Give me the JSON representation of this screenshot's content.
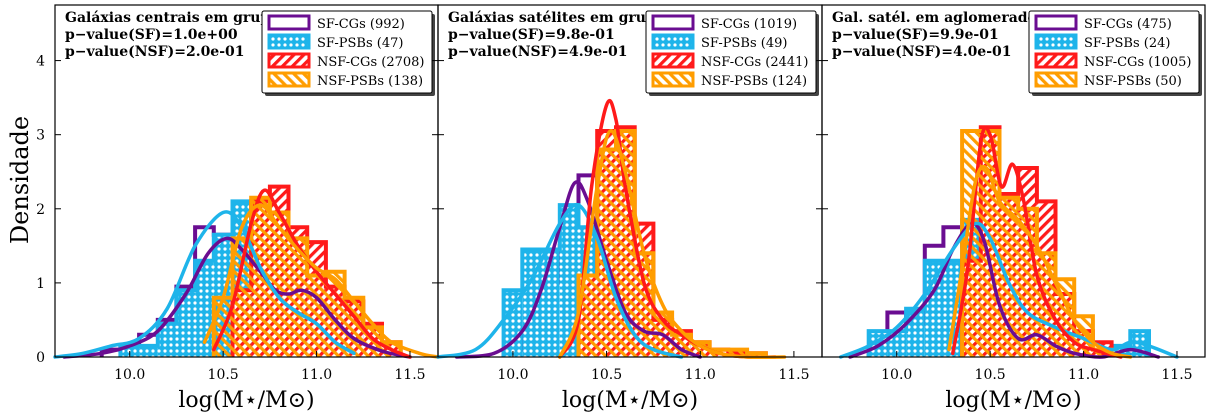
{
  "chart_data": [
    {
      "type": "histogram",
      "title": "Galáxias centrais em grupos",
      "annotations": [
        "p−value(SF)=1.0e+00",
        "p−value(NSF)=2.0e-01"
      ],
      "xlabel": "log(M⋆/M⊙)",
      "ylabel": "Densidade",
      "xlim": [
        9.6,
        11.65
      ],
      "ylim": [
        0,
        4.75
      ],
      "xticks": [
        10.0,
        10.5,
        11.0,
        11.5
      ],
      "xticklabels": [
        "10.0",
        "10.5",
        "11.0",
        "11.5"
      ],
      "yticks": [
        0,
        1,
        2,
        3,
        4
      ],
      "yticklabels": [
        "0",
        "1",
        "2",
        "3",
        "4"
      ],
      "legend_position": "top-right",
      "series": [
        {
          "name": "SF-CGs (992)",
          "color": "#6a0d91",
          "style": "step",
          "edges": [
            9.85,
            9.95,
            10.05,
            10.15,
            10.25,
            10.35,
            10.45,
            10.55,
            10.65,
            10.75,
            10.85,
            10.95,
            11.05,
            11.15,
            11.25,
            11.35,
            11.45
          ],
          "heights": [
            0.1,
            0.15,
            0.3,
            0.5,
            0.95,
            1.75,
            1.65,
            1.6,
            1.1,
            0.95,
            0.9,
            0.85,
            0.55,
            0.3,
            0.2,
            0.1
          ],
          "kde": {
            "x": [
              9.65,
              9.85,
              10.0,
              10.15,
              10.3,
              10.42,
              10.52,
              10.6,
              10.7,
              10.78,
              10.85,
              10.92,
              11.0,
              11.1,
              11.2,
              11.35,
              11.5
            ],
            "y": [
              0.0,
              0.05,
              0.15,
              0.35,
              0.85,
              1.4,
              1.6,
              1.45,
              1.15,
              0.9,
              0.85,
              0.9,
              0.8,
              0.5,
              0.25,
              0.08,
              0.0
            ]
          }
        },
        {
          "name": "SF-PSBs (47)",
          "color": "#1eb4ea",
          "style": "dotted-fill",
          "edges": [
            9.95,
            10.05,
            10.15,
            10.25,
            10.35,
            10.45,
            10.55,
            10.65,
            10.75,
            10.85,
            10.95,
            11.05,
            11.15
          ],
          "heights": [
            0.15,
            0.15,
            0.45,
            0.9,
            1.3,
            1.65,
            2.1,
            1.2,
            0.85,
            0.65,
            0.55,
            0.35
          ],
          "kde": {
            "x": [
              9.6,
              9.75,
              9.9,
              10.05,
              10.2,
              10.35,
              10.5,
              10.6,
              10.7,
              10.8,
              10.9,
              11.0,
              11.1,
              11.2
            ],
            "y": [
              0.0,
              0.05,
              0.15,
              0.25,
              0.65,
              1.5,
              1.95,
              1.75,
              1.2,
              0.8,
              0.6,
              0.45,
              0.2,
              0.05
            ]
          }
        },
        {
          "name": "NSF-CGs (2708)",
          "color": "#ff1a1a",
          "style": "hatch",
          "edges": [
            10.55,
            10.65,
            10.75,
            10.85,
            10.95,
            11.05,
            11.15,
            11.25,
            11.35,
            11.45
          ],
          "heights": [
            0.9,
            2.1,
            2.3,
            1.75,
            1.55,
            0.95,
            0.75,
            0.45,
            0.2
          ],
          "kde": {
            "x": [
              10.45,
              10.55,
              10.65,
              10.72,
              10.8,
              10.9,
              11.0,
              11.1,
              11.2,
              11.3,
              11.4,
              11.5
            ],
            "y": [
              0.1,
              0.7,
              1.8,
              2.25,
              1.95,
              1.5,
              1.15,
              0.85,
              0.55,
              0.25,
              0.1,
              0.0
            ]
          }
        },
        {
          "name": "NSF-PSBs (138)",
          "color": "#ff9d00",
          "style": "hatch",
          "edges": [
            10.45,
            10.55,
            10.65,
            10.75,
            10.85,
            10.95,
            11.05,
            11.15,
            11.25,
            11.35,
            11.45
          ],
          "heights": [
            0.8,
            1.6,
            2.15,
            1.95,
            1.6,
            1.1,
            1.15,
            0.8,
            0.4,
            0.2
          ],
          "kde": {
            "x": [
              10.4,
              10.5,
              10.6,
              10.7,
              10.8,
              10.9,
              11.0,
              11.1,
              11.2,
              11.3,
              11.4,
              11.55,
              11.65
            ],
            "y": [
              0.2,
              0.8,
              1.75,
              2.05,
              1.75,
              1.45,
              1.2,
              1.05,
              0.75,
              0.45,
              0.2,
              0.05,
              0.0
            ]
          }
        }
      ]
    },
    {
      "type": "histogram",
      "title": "Galáxias satélites em grupos",
      "annotations": [
        "p−value(SF)=9.8e-01",
        "p−value(NSF)=4.9e-01"
      ],
      "xlabel": "log(M⋆/M⊙)",
      "xlim": [
        9.6,
        11.65
      ],
      "ylim": [
        0,
        4.75
      ],
      "xticks": [
        10.0,
        10.5,
        11.0,
        11.5
      ],
      "xticklabels": [
        "10.0",
        "10.5",
        "11.0",
        "11.5"
      ],
      "legend_position": "top-right",
      "series": [
        {
          "name": "SF-CGs (1019)",
          "color": "#6a0d91",
          "style": "step",
          "edges": [
            9.95,
            10.05,
            10.15,
            10.25,
            10.35,
            10.45,
            10.55,
            10.65,
            10.75,
            10.85,
            10.95
          ],
          "heights": [
            0.1,
            0.3,
            1.0,
            1.5,
            2.45,
            2.3,
            1.0,
            0.45,
            0.3,
            0.15
          ],
          "kde": {
            "x": [
              9.7,
              9.9,
              10.05,
              10.15,
              10.25,
              10.33,
              10.4,
              10.5,
              10.6,
              10.7,
              10.8,
              10.9,
              11.0
            ],
            "y": [
              0.0,
              0.05,
              0.35,
              0.9,
              1.75,
              2.35,
              2.1,
              1.3,
              0.6,
              0.35,
              0.3,
              0.1,
              0.0
            ]
          }
        },
        {
          "name": "SF-PSBs (49)",
          "color": "#1eb4ea",
          "style": "dotted-fill",
          "edges": [
            9.95,
            10.05,
            10.15,
            10.25,
            10.35,
            10.45,
            10.55,
            10.65,
            10.75,
            10.85
          ],
          "heights": [
            0.9,
            1.45,
            1.45,
            2.05,
            1.75,
            0.9,
            0.3,
            0.15,
            0.1
          ],
          "kde": {
            "x": [
              9.6,
              9.8,
              9.95,
              10.1,
              10.25,
              10.35,
              10.45,
              10.55,
              10.65,
              10.75,
              10.9
            ],
            "y": [
              0.0,
              0.1,
              0.5,
              1.05,
              1.8,
              2.05,
              1.6,
              0.8,
              0.3,
              0.1,
              0.0
            ]
          }
        },
        {
          "name": "NSF-CGs (2441)",
          "color": "#ff1a1a",
          "style": "hatch",
          "edges": [
            10.35,
            10.45,
            10.55,
            10.65,
            10.75,
            10.85,
            10.95,
            11.05,
            11.15,
            11.25,
            11.35
          ],
          "heights": [
            1.1,
            3.05,
            3.1,
            1.8,
            0.5,
            0.35,
            0.2,
            0.1,
            0.05,
            0.05
          ],
          "kde": {
            "x": [
              10.25,
              10.35,
              10.42,
              10.5,
              10.55,
              10.6,
              10.7,
              10.8,
              10.9,
              11.0,
              11.1,
              11.25,
              11.4
            ],
            "y": [
              0.0,
              0.5,
              2.3,
              3.4,
              3.2,
              2.3,
              1.0,
              0.5,
              0.3,
              0.15,
              0.05,
              0.0,
              0.0
            ]
          }
        },
        {
          "name": "NSF-PSBs (124)",
          "color": "#ff9d00",
          "style": "hatch",
          "edges": [
            10.35,
            10.45,
            10.55,
            10.65,
            10.75,
            10.85,
            10.95,
            11.05,
            11.15,
            11.25,
            11.35
          ],
          "heights": [
            1.1,
            2.8,
            3.05,
            1.4,
            0.6,
            0.3,
            0.2,
            0.1,
            0.1,
            0.05
          ],
          "kde": {
            "x": [
              10.25,
              10.35,
              10.45,
              10.52,
              10.6,
              10.7,
              10.8,
              10.9,
              11.0,
              11.1,
              11.25,
              11.45
            ],
            "y": [
              0.0,
              0.6,
              2.3,
              3.05,
              2.5,
              1.4,
              0.7,
              0.35,
              0.15,
              0.05,
              0.0,
              0.0
            ]
          }
        }
      ]
    },
    {
      "type": "histogram",
      "title": "Gal. satél. em aglomerados",
      "annotations": [
        "p−value(SF)=9.9e-01",
        "p−value(NSF)=4.0e-01"
      ],
      "xlabel": "log(M⋆/M⊙)",
      "xlim": [
        9.6,
        11.65
      ],
      "ylim": [
        0,
        4.75
      ],
      "xticks": [
        10.0,
        10.5,
        11.0,
        11.5
      ],
      "xticklabels": [
        "10.0",
        "10.5",
        "11.0",
        "11.5"
      ],
      "legend_position": "top-right",
      "series": [
        {
          "name": "SF-CGs (475)",
          "color": "#6a0d91",
          "style": "step",
          "edges": [
            9.85,
            9.95,
            10.05,
            10.15,
            10.25,
            10.35,
            10.45,
            10.55,
            10.65,
            10.75,
            10.85,
            10.95,
            11.05,
            11.15,
            11.25
          ],
          "heights": [
            0.1,
            0.6,
            0.45,
            1.5,
            1.75,
            1.5,
            1.5,
            0.5,
            0.3,
            0.25,
            0.25,
            0.15,
            0.1,
            0.1
          ],
          "kde": {
            "x": [
              9.75,
              9.9,
              10.05,
              10.2,
              10.3,
              10.4,
              10.47,
              10.55,
              10.65,
              10.75,
              10.85,
              10.95,
              11.1,
              11.25,
              11.4
            ],
            "y": [
              0.0,
              0.15,
              0.45,
              0.9,
              1.45,
              1.8,
              1.55,
              0.7,
              0.25,
              0.3,
              0.15,
              0.05,
              0.0,
              0.1,
              0.0
            ]
          }
        },
        {
          "name": "SF-PSBs (24)",
          "color": "#1eb4ea",
          "style": "dotted-fill",
          "edges": [
            9.85,
            9.95,
            10.05,
            10.15,
            10.25,
            10.35,
            10.45,
            10.55,
            10.65,
            10.75,
            10.85,
            10.95,
            11.05,
            11.15,
            11.25,
            11.35
          ],
          "heights": [
            0.35,
            0.35,
            0.65,
            1.3,
            1.3,
            1.85,
            1.55,
            1.0,
            0.35,
            0.35,
            0.2,
            0.15,
            0.1,
            0.15,
            0.35
          ],
          "kde": {
            "x": [
              9.7,
              9.85,
              10.0,
              10.15,
              10.3,
              10.42,
              10.5,
              10.6,
              10.7,
              10.85,
              11.0,
              11.15,
              11.25,
              11.35,
              11.5
            ],
            "y": [
              0.0,
              0.15,
              0.4,
              0.85,
              1.45,
              1.8,
              1.6,
              1.0,
              0.6,
              0.4,
              0.25,
              0.1,
              0.2,
              0.15,
              0.0
            ]
          }
        },
        {
          "name": "NSF-CGs (1005)",
          "color": "#ff1a1a",
          "style": "hatch",
          "edges": [
            10.35,
            10.45,
            10.55,
            10.65,
            10.75,
            10.85,
            10.95,
            11.05,
            11.15
          ],
          "heights": [
            1.3,
            3.1,
            2.2,
            2.55,
            2.1,
            0.85,
            0.35,
            0.2
          ],
          "kde": {
            "x": [
              10.3,
              10.38,
              10.45,
              10.5,
              10.56,
              10.62,
              10.68,
              10.75,
              10.85,
              10.95,
              11.05,
              11.2
            ],
            "y": [
              0.05,
              1.2,
              2.9,
              3.0,
              2.3,
              2.6,
              2.1,
              1.1,
              0.5,
              0.2,
              0.1,
              0.0
            ]
          }
        },
        {
          "name": "NSF-PSBs (50)",
          "color": "#ff9d00",
          "style": "hatch",
          "edges": [
            10.35,
            10.45,
            10.55,
            10.65,
            10.75,
            10.85,
            10.95,
            11.05,
            11.15
          ],
          "heights": [
            3.05,
            3.05,
            2.15,
            2.0,
            1.4,
            1.05,
            0.55,
            0.1
          ],
          "kde": {
            "x": [
              10.28,
              10.35,
              10.42,
              10.48,
              10.55,
              10.65,
              10.75,
              10.85,
              10.95,
              11.05,
              11.15,
              11.25
            ],
            "y": [
              0.1,
              1.2,
              2.35,
              2.55,
              2.1,
              1.85,
              1.5,
              1.0,
              0.5,
              0.2,
              0.05,
              0.0
            ]
          }
        }
      ]
    }
  ]
}
